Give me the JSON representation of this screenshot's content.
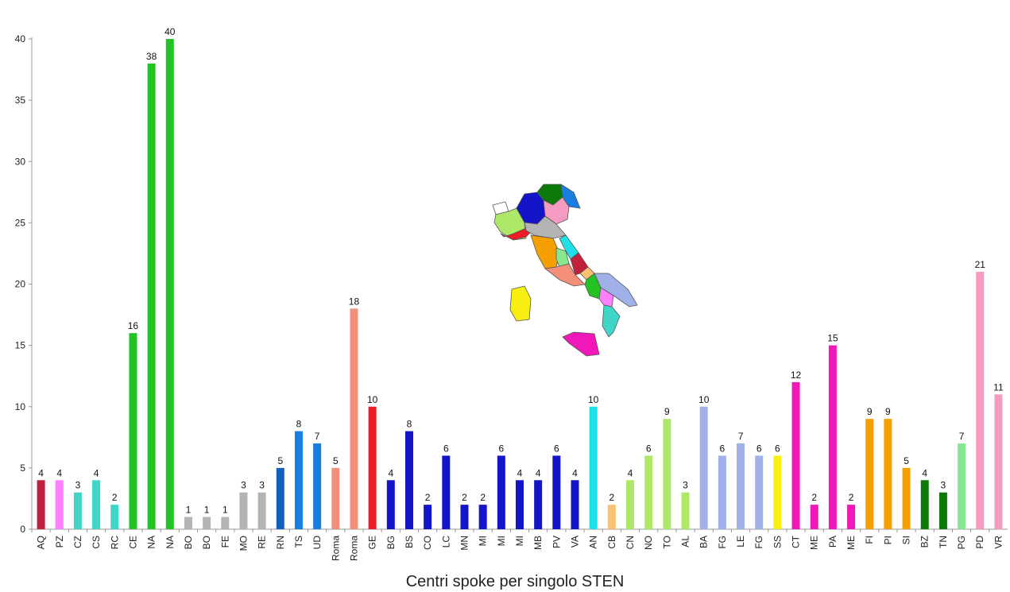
{
  "chart_data": {
    "type": "bar",
    "xlabel": "Centri spoke per singolo STEN",
    "ylabel": "",
    "ylim": [
      0,
      40
    ],
    "yticks": [
      0,
      5,
      10,
      15,
      20,
      25,
      30,
      35,
      40
    ],
    "grid": false,
    "legend": "none",
    "categories": [
      "AQ",
      "PZ",
      "CZ",
      "CS",
      "RC",
      "CE",
      "NA",
      "NA",
      "BO",
      "BO",
      "FE",
      "MO",
      "RE",
      "RN",
      "TS",
      "UD",
      "Roma",
      "Roma",
      "GE",
      "BG",
      "BS",
      "CO",
      "LC",
      "MN",
      "MI",
      "MI",
      "MI",
      "MB",
      "PV",
      "VA",
      "AN",
      "CB",
      "CN",
      "NO",
      "TO",
      "AL",
      "BA",
      "FG",
      "LE",
      "FG",
      "SS",
      "CT",
      "ME",
      "PA",
      "ME",
      "FI",
      "PI",
      "SI",
      "BZ",
      "TN",
      "PG",
      "PD",
      "VR"
    ],
    "values": [
      4,
      4,
      3,
      4,
      2,
      16,
      38,
      40,
      1,
      1,
      1,
      3,
      3,
      5,
      8,
      7,
      5,
      18,
      10,
      4,
      8,
      2,
      6,
      2,
      2,
      6,
      4,
      4,
      6,
      4,
      10,
      2,
      4,
      6,
      9,
      3,
      10,
      6,
      7,
      6,
      6,
      12,
      2,
      15,
      2,
      9,
      9,
      5,
      4,
      3,
      7,
      21,
      11
    ],
    "colors": [
      "#c0223c",
      "#ff80ff",
      "#3fd6c8",
      "#3fd6c8",
      "#3fd6c8",
      "#22c322",
      "#22c322",
      "#22c322",
      "#b4b4b4",
      "#b4b4b4",
      "#b4b4b4",
      "#b4b4b4",
      "#b4b4b4",
      "#1560bd",
      "#1a7de0",
      "#1a7de0",
      "#f4907a",
      "#f4907a",
      "#ee1c24",
      "#1414c8",
      "#1414c8",
      "#1414c8",
      "#1414c8",
      "#1414c8",
      "#1414c8",
      "#1414c8",
      "#1414c8",
      "#1414c8",
      "#1414c8",
      "#1414c8",
      "#1fe0e8",
      "#fbc070",
      "#aee868",
      "#aee868",
      "#aee868",
      "#aee868",
      "#a0b0e8",
      "#a0b0e8",
      "#a0b0e8",
      "#a0b0e8",
      "#f8ee10",
      "#f018b8",
      "#f018b8",
      "#f018b8",
      "#f018b8",
      "#f5a000",
      "#f5a000",
      "#f5a000",
      "#0b7a0b",
      "#0b7a0b",
      "#88e890",
      "#f59ac0",
      "#f59ac0"
    ]
  },
  "map": {
    "regions": [
      {
        "name": "Valle d'Aosta",
        "color": "#ffffff"
      },
      {
        "name": "Piemonte",
        "color": "#aee868"
      },
      {
        "name": "Lombardia",
        "color": "#1414c8"
      },
      {
        "name": "Trentino",
        "color": "#0b7a0b"
      },
      {
        "name": "Veneto",
        "color": "#f59ac0"
      },
      {
        "name": "Friuli",
        "color": "#1a7de0"
      },
      {
        "name": "Liguria",
        "color": "#ee1c24"
      },
      {
        "name": "Emilia-Romagna",
        "color": "#b4b4b4"
      },
      {
        "name": "Toscana",
        "color": "#f5a000"
      },
      {
        "name": "Umbria",
        "color": "#88e890"
      },
      {
        "name": "Marche",
        "color": "#1fe0e8"
      },
      {
        "name": "Lazio",
        "color": "#f4907a"
      },
      {
        "name": "Abruzzo",
        "color": "#c0223c"
      },
      {
        "name": "Molise",
        "color": "#fbc070"
      },
      {
        "name": "Campania",
        "color": "#22c322"
      },
      {
        "name": "Puglia",
        "color": "#a0b0e8"
      },
      {
        "name": "Basilicata",
        "color": "#ff80ff"
      },
      {
        "name": "Calabria",
        "color": "#3fd6c8"
      },
      {
        "name": "Sicilia",
        "color": "#f018b8"
      },
      {
        "name": "Sardegna",
        "color": "#f8ee10"
      }
    ]
  }
}
